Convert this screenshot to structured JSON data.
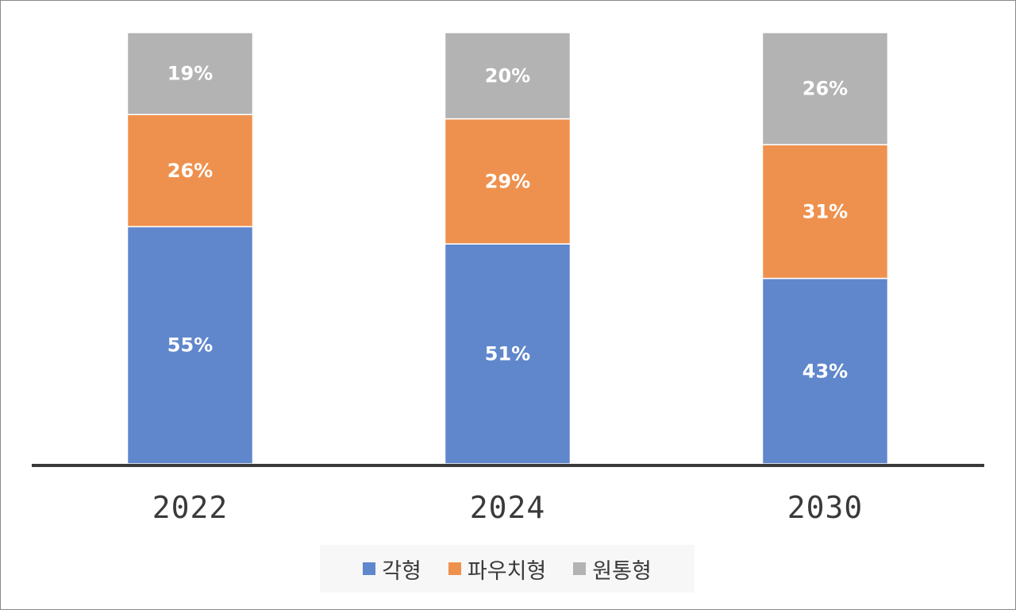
{
  "chart_data": {
    "type": "bar",
    "stacked": true,
    "categories": [
      "2022",
      "2024",
      "2030"
    ],
    "series": [
      {
        "name": "각형",
        "values": [
          55,
          51,
          43
        ],
        "labels": [
          "55%",
          "51%",
          "43%"
        ],
        "color": "#6087cc"
      },
      {
        "name": "파우치형",
        "values": [
          26,
          29,
          31
        ],
        "labels": [
          "26%",
          "29%",
          "31%"
        ],
        "color": "#ef914e"
      },
      {
        "name": "원통형",
        "values": [
          19,
          20,
          26
        ],
        "labels": [
          "19%",
          "20%",
          "26%"
        ],
        "color": "#b3b3b3"
      }
    ],
    "title": "",
    "xlabel": "",
    "ylabel": "",
    "ylim": [
      0,
      100
    ],
    "grid": false,
    "legend_position": "bottom"
  }
}
